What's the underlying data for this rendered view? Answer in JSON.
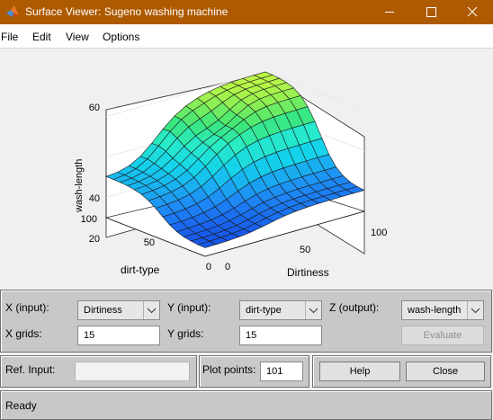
{
  "window": {
    "title": "Surface Viewer: Sugeno washing machine",
    "accent": "#ad5a00"
  },
  "menu": [
    {
      "label": "File"
    },
    {
      "label": "Edit"
    },
    {
      "label": "View"
    },
    {
      "label": "Options"
    }
  ],
  "plot": {
    "zlabel": "wash-length",
    "xlabel": "Dirtiness",
    "ylabel": "dirt-type",
    "z_ticks": [
      "20",
      "40",
      "60"
    ],
    "x_ticks": [
      "0",
      "50",
      "100"
    ],
    "y_ticks": [
      "0",
      "50",
      "100"
    ],
    "x_range": [
      0,
      100
    ],
    "y_range": [
      0,
      100
    ],
    "z_range": [
      10,
      65
    ],
    "colormap": "parula"
  },
  "controls": {
    "x_input_label": "X (input):",
    "x_input_value": "Dirtiness",
    "y_input_label": "Y (input):",
    "y_input_value": "dirt-type",
    "z_output_label": "Z (output):",
    "z_output_value": "wash-length",
    "x_grids_label": "X grids:",
    "x_grids_value": "15",
    "y_grids_label": "Y grids:",
    "y_grids_value": "15",
    "evaluate_label": "Evaluate",
    "ref_input_label": "Ref. Input:",
    "ref_input_value": "",
    "plot_points_label": "Plot points:",
    "plot_points_value": "101",
    "help_label": "Help",
    "close_label": "Close"
  },
  "status": {
    "text": "Ready"
  }
}
